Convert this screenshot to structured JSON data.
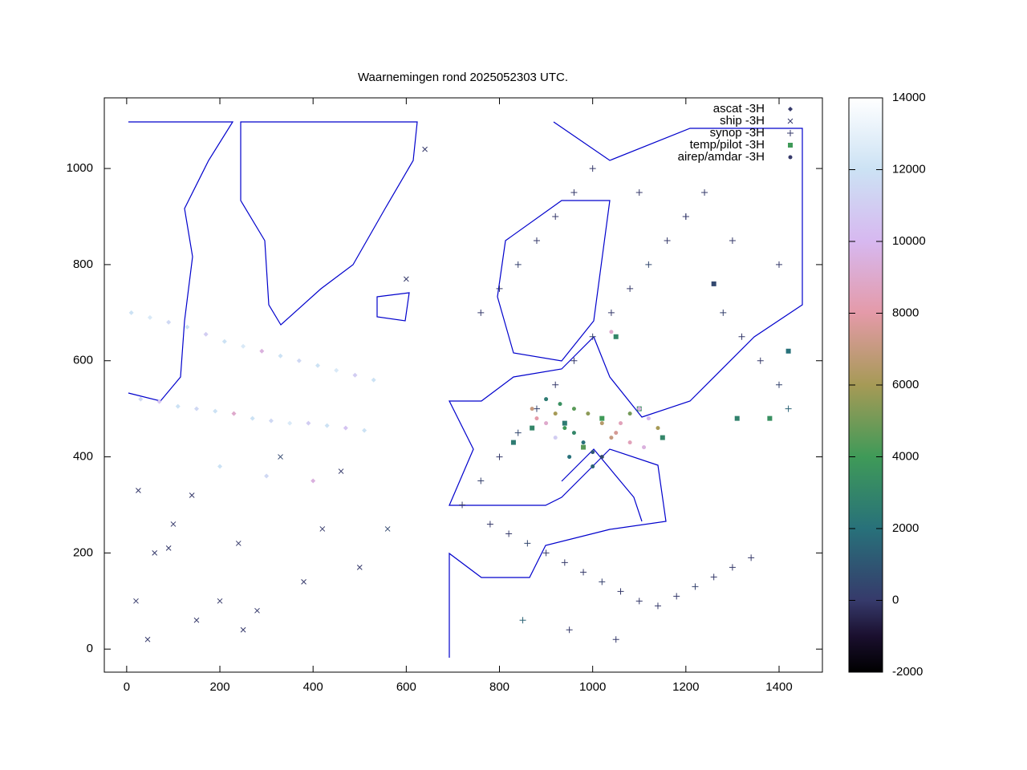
{
  "chart_data": {
    "type": "scatter",
    "title": "Waarnemingen rond 2025052303 UTC.",
    "xlim": [
      -48,
      1493
    ],
    "ylim": [
      -48,
      1147
    ],
    "xticks": [
      0,
      200,
      400,
      600,
      800,
      1000,
      1200,
      1400
    ],
    "yticks": [
      0,
      200,
      400,
      600,
      800,
      1000
    ],
    "legend": "upper right",
    "colorbar": {
      "lim": [
        -2000,
        14000
      ],
      "ticks": [
        -2000,
        0,
        2000,
        4000,
        6000,
        8000,
        10000,
        12000,
        14000
      ],
      "colormap": [
        {
          "value": -2000,
          "color": "#000000"
        },
        {
          "value": -1000,
          "color": "#1a0f2e"
        },
        {
          "value": 0,
          "color": "#363a6b"
        },
        {
          "value": 2000,
          "color": "#28717a"
        },
        {
          "value": 4000,
          "color": "#3f9a58"
        },
        {
          "value": 6000,
          "color": "#a69a56"
        },
        {
          "value": 8000,
          "color": "#e49aa8"
        },
        {
          "value": 10000,
          "color": "#d7b8f0"
        },
        {
          "value": 12000,
          "color": "#cce2f4"
        },
        {
          "value": 14000,
          "color": "#ffffff"
        }
      ]
    },
    "series": [
      {
        "name": "ascat -3H",
        "marker": "diamond",
        "color": "#363a6b",
        "x": [
          10,
          50,
          90,
          130,
          170,
          210,
          250,
          290,
          330,
          370,
          410,
          450,
          490,
          530,
          30,
          70,
          110,
          150,
          190,
          230,
          270,
          310,
          350,
          390,
          430,
          470,
          510,
          200,
          300,
          400
        ],
        "y": [
          700,
          690,
          680,
          670,
          655,
          640,
          630,
          620,
          610,
          600,
          590,
          580,
          570,
          560,
          520,
          515,
          505,
          500,
          495,
          490,
          480,
          475,
          470,
          470,
          465,
          460,
          455,
          380,
          360,
          350
        ],
        "z": [
          12000,
          12500,
          11500,
          12000,
          11000,
          12000,
          12500,
          9500,
          12000,
          11500,
          12000,
          12500,
          11000,
          12000,
          11500,
          10500,
          12000,
          11500,
          12000,
          9000,
          12000,
          11500,
          12500,
          11000,
          12000,
          10500,
          12000,
          12000,
          11500,
          9500
        ]
      },
      {
        "name": "ship -3H",
        "marker": "cross",
        "color": "#363a6b",
        "x": [
          25,
          60,
          100,
          140,
          200,
          240,
          280,
          330,
          380,
          420,
          460,
          500,
          560,
          600,
          640,
          20,
          90,
          250,
          150,
          45
        ],
        "y": [
          330,
          200,
          260,
          320,
          100,
          220,
          80,
          400,
          140,
          250,
          370,
          170,
          250,
          770,
          1040,
          100,
          210,
          40,
          60,
          20
        ],
        "z": [
          0,
          0,
          0,
          0,
          0,
          0,
          0,
          500,
          0,
          0,
          0,
          0,
          500,
          0,
          0,
          0,
          0,
          0,
          0,
          0
        ]
      },
      {
        "name": "synop -3H",
        "marker": "plus",
        "color": "#363a6b",
        "x": [
          720,
          760,
          800,
          840,
          880,
          920,
          960,
          1000,
          1040,
          1080,
          1120,
          1160,
          1200,
          1240,
          1280,
          1320,
          1360,
          1400,
          1420,
          780,
          820,
          860,
          900,
          940,
          980,
          1020,
          1060,
          1100,
          1140,
          1180,
          1220,
          1260,
          1300,
          1340,
          760,
          800,
          840,
          880,
          920,
          960,
          1000,
          1100,
          1200,
          1300,
          1400,
          850,
          950,
          1050
        ],
        "y": [
          300,
          350,
          400,
          450,
          500,
          550,
          600,
          650,
          700,
          750,
          800,
          850,
          900,
          950,
          700,
          650,
          600,
          550,
          500,
          260,
          240,
          220,
          200,
          180,
          160,
          140,
          120,
          100,
          90,
          110,
          130,
          150,
          170,
          190,
          700,
          750,
          800,
          850,
          900,
          950,
          1000,
          950,
          900,
          850,
          800,
          60,
          40,
          20
        ],
        "z": [
          0,
          200,
          0,
          500,
          300,
          0,
          0,
          200,
          0,
          0,
          500,
          0,
          0,
          0,
          200,
          0,
          0,
          300,
          1500,
          0,
          0,
          500,
          0,
          0,
          0,
          200,
          0,
          0,
          0,
          0,
          300,
          0,
          0,
          0,
          0,
          0,
          200,
          0,
          0,
          0,
          0,
          0,
          0,
          0,
          0,
          1500,
          0,
          0
        ]
      },
      {
        "name": "temp/pilot -3H",
        "marker": "square",
        "color": "#3f9a58",
        "x": [
          870,
          940,
          1020,
          1100,
          1150,
          1380,
          1420,
          830,
          1050,
          980,
          1310,
          1260
        ],
        "y": [
          460,
          470,
          480,
          500,
          440,
          480,
          620,
          430,
          650,
          420,
          480,
          760
        ],
        "z": [
          3000,
          2500,
          4000,
          3500,
          3000,
          3500,
          2000,
          2500,
          3000,
          4500,
          2800,
          500
        ]
      },
      {
        "name": "airep/amdar -3H",
        "marker": "circle",
        "color": "#363a6b",
        "x": [
          880,
          900,
          920,
          940,
          960,
          980,
          1000,
          1020,
          1040,
          1060,
          1080,
          1100,
          1120,
          1140,
          900,
          930,
          960,
          990,
          1020,
          1050,
          1080,
          1110,
          1000,
          950,
          1040,
          920,
          870
        ],
        "y": [
          480,
          470,
          490,
          460,
          450,
          430,
          410,
          400,
          440,
          470,
          490,
          500,
          480,
          460,
          520,
          510,
          500,
          490,
          470,
          450,
          430,
          420,
          380,
          400,
          660,
          440,
          500
        ],
        "z": [
          8000,
          9000,
          6000,
          4000,
          3000,
          2000,
          1000,
          500,
          7000,
          8500,
          5000,
          9500,
          10000,
          6000,
          2500,
          3500,
          4500,
          5500,
          6500,
          7500,
          8500,
          9500,
          1500,
          2000,
          9000,
          11000,
          7000
        ]
      }
    ]
  }
}
